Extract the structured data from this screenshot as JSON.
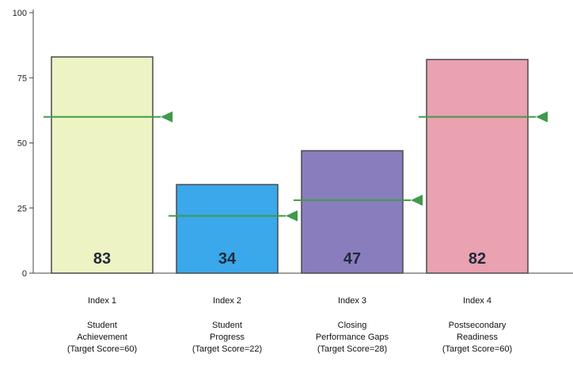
{
  "chart_data": {
    "type": "bar",
    "categories": [
      "Index 1",
      "Index 2",
      "Index 3",
      "Index 4"
    ],
    "category_descriptions": [
      [
        "Student",
        "Achievement",
        "(Target Score=60)"
      ],
      [
        "Student",
        "Progress",
        "(Target Score=22)"
      ],
      [
        "Closing",
        "Performance Gaps",
        "(Target Score=28)"
      ],
      [
        "Postsecondary",
        "Readiness",
        "(Target Score=60)"
      ]
    ],
    "values": [
      83,
      34,
      47,
      82
    ],
    "value_labels": [
      "83",
      "34",
      "47",
      "82"
    ],
    "targets": [
      60,
      22,
      28,
      60
    ],
    "bar_colors": [
      "#eef3c4",
      "#3aa8ea",
      "#8a7dbd",
      "#eaa1b0"
    ],
    "target_color": "#3f9a4a",
    "ylim": [
      0,
      100
    ],
    "yticks": [
      0,
      25,
      50,
      75,
      100
    ],
    "ytick_labels": [
      "0",
      "25",
      "50",
      "75",
      "100"
    ],
    "grid": false,
    "title": "",
    "xlabel": "",
    "ylabel": ""
  }
}
